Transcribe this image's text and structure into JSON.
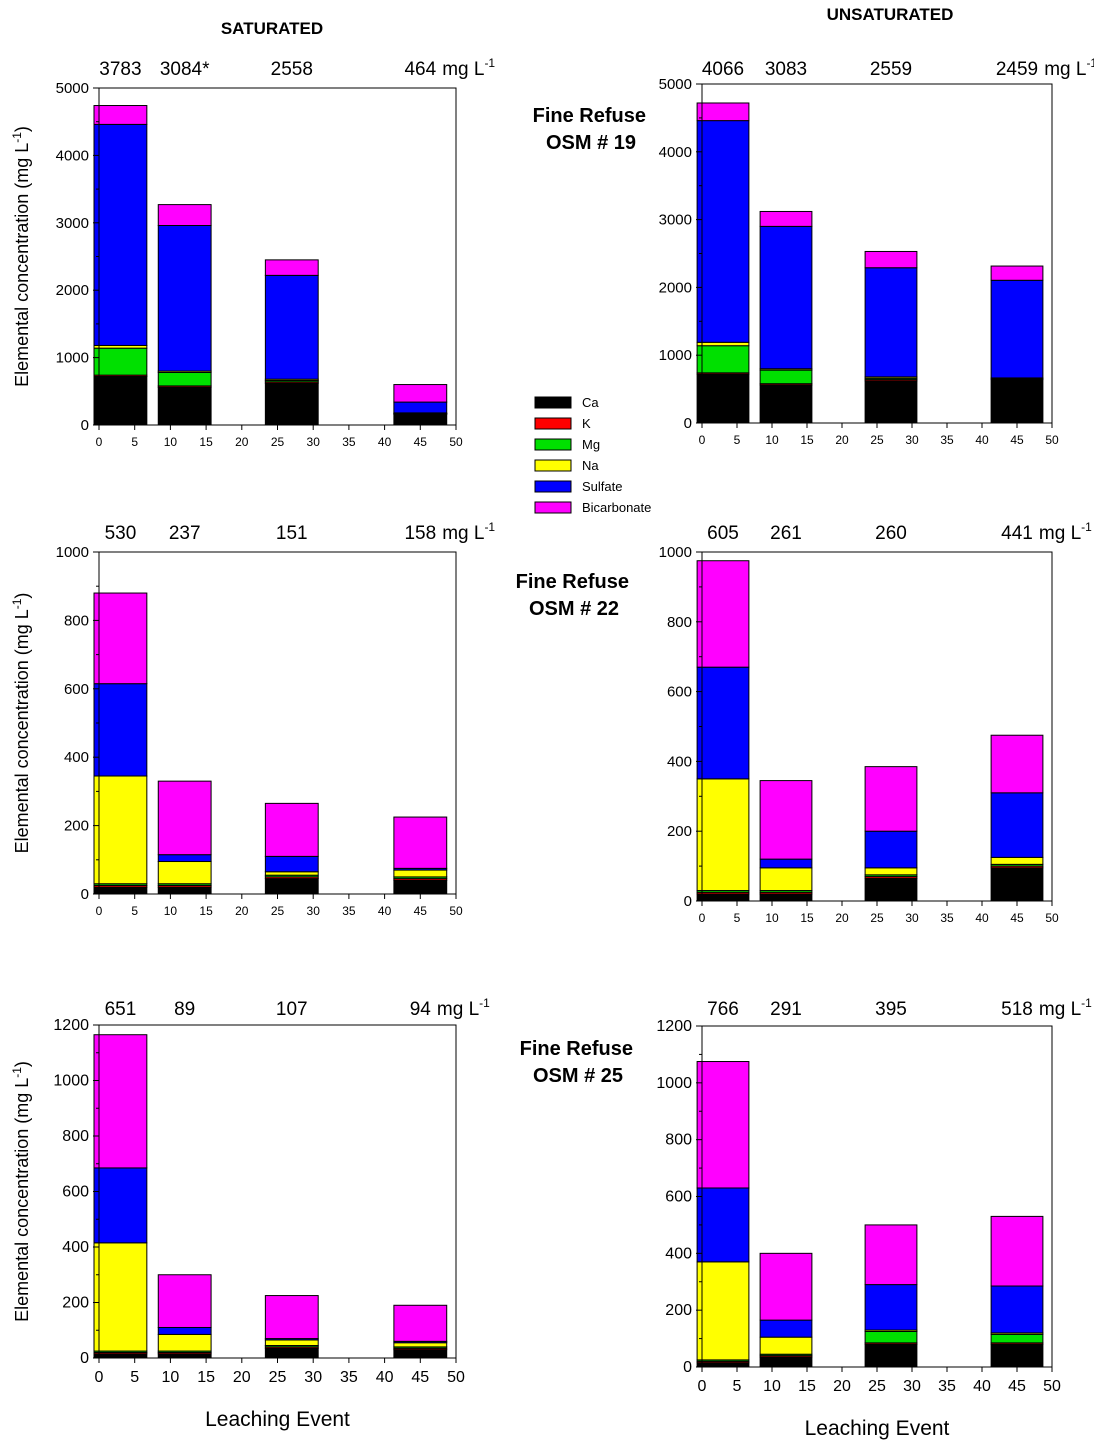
{
  "headings": {
    "saturated": "SATURATED",
    "unsaturated": "UNSATURATED"
  },
  "row_labels": [
    {
      "line1": "Fine Refuse",
      "line2": "OSM # 19"
    },
    {
      "line1": "Fine Refuse",
      "line2": "OSM # 22"
    },
    {
      "line1": "Fine Refuse",
      "line2": "OSM # 25"
    }
  ],
  "ylabel_main": "Elemental concentration (mg L",
  "ylabel_sup": "-1",
  "ylabel_tail": ")",
  "xlabel": "Leaching Event",
  "unit_main": "mg L",
  "unit_sup": "-1",
  "legend": [
    {
      "label": "Ca",
      "color": "#000000"
    },
    {
      "label": "K",
      "color": "#ff0000"
    },
    {
      "label": "Mg",
      "color": "#00e000"
    },
    {
      "label": "Na",
      "color": "#ffff00"
    },
    {
      "label": "Sulfate",
      "color": "#0000ff"
    },
    {
      "label": "Bicarbonate",
      "color": "#ff00ff"
    }
  ],
  "chart_data": [
    {
      "type": "bar",
      "stacked": true,
      "panel": "saturated",
      "row": "OSM # 19",
      "x": [
        3,
        12,
        27,
        45
      ],
      "xlim": [
        0,
        50
      ],
      "ylim": [
        0,
        5000
      ],
      "top_labels": [
        "3783",
        "3084*",
        "2558",
        "464"
      ],
      "xlabel": "",
      "ylabel": "Elemental concentration (mg L-1)",
      "series": [
        {
          "name": "Ca",
          "values": [
            720,
            560,
            620,
            160
          ]
        },
        {
          "name": "K",
          "values": [
            20,
            20,
            20,
            5
          ]
        },
        {
          "name": "Mg",
          "values": [
            400,
            200,
            20,
            5
          ]
        },
        {
          "name": "Na",
          "values": [
            40,
            20,
            20,
            10
          ]
        },
        {
          "name": "Sulfate",
          "values": [
            3280,
            2160,
            1540,
            160
          ]
        },
        {
          "name": "Bicarbonate",
          "values": [
            280,
            310,
            230,
            260
          ]
        }
      ]
    },
    {
      "type": "bar",
      "stacked": true,
      "panel": "unsaturated",
      "row": "OSM # 19",
      "x": [
        3,
        12,
        27,
        45
      ],
      "xlim": [
        0,
        50
      ],
      "ylim": [
        0,
        5000
      ],
      "top_labels": [
        "4066",
        "3083",
        "2559",
        "2459"
      ],
      "xlabel": "",
      "ylabel": "",
      "series": [
        {
          "name": "Ca",
          "values": [
            720,
            560,
            620,
            640
          ]
        },
        {
          "name": "K",
          "values": [
            20,
            20,
            20,
            10
          ]
        },
        {
          "name": "Mg",
          "values": [
            400,
            200,
            20,
            5
          ]
        },
        {
          "name": "Na",
          "values": [
            50,
            20,
            20,
            10
          ]
        },
        {
          "name": "Sulfate",
          "values": [
            3270,
            2100,
            1610,
            1440
          ]
        },
        {
          "name": "Bicarbonate",
          "values": [
            260,
            220,
            240,
            210
          ]
        }
      ]
    },
    {
      "type": "bar",
      "stacked": true,
      "panel": "saturated",
      "row": "OSM # 22",
      "x": [
        3,
        12,
        27,
        45
      ],
      "xlim": [
        0,
        50
      ],
      "ylim": [
        0,
        1000
      ],
      "top_labels": [
        "530",
        "237",
        "151",
        "158"
      ],
      "xlabel": "",
      "ylabel": "Elemental concentration (mg L-1)",
      "series": [
        {
          "name": "Ca",
          "values": [
            20,
            20,
            45,
            40
          ]
        },
        {
          "name": "K",
          "values": [
            5,
            5,
            5,
            5
          ]
        },
        {
          "name": "Mg",
          "values": [
            5,
            5,
            5,
            5
          ]
        },
        {
          "name": "Na",
          "values": [
            315,
            65,
            10,
            20
          ]
        },
        {
          "name": "Sulfate",
          "values": [
            270,
            20,
            45,
            5
          ]
        },
        {
          "name": "Bicarbonate",
          "values": [
            265,
            215,
            155,
            150
          ]
        }
      ]
    },
    {
      "type": "bar",
      "stacked": true,
      "panel": "unsaturated",
      "row": "OSM # 22",
      "x": [
        3,
        12,
        27,
        45
      ],
      "xlim": [
        0,
        50
      ],
      "ylim": [
        0,
        1000
      ],
      "top_labels": [
        "605",
        "261",
        "260",
        "441"
      ],
      "xlabel": "",
      "ylabel": "",
      "series": [
        {
          "name": "Ca",
          "values": [
            20,
            20,
            65,
            95
          ]
        },
        {
          "name": "K",
          "values": [
            5,
            5,
            5,
            5
          ]
        },
        {
          "name": "Mg",
          "values": [
            5,
            5,
            5,
            5
          ]
        },
        {
          "name": "Na",
          "values": [
            320,
            65,
            20,
            20
          ]
        },
        {
          "name": "Sulfate",
          "values": [
            320,
            25,
            105,
            185
          ]
        },
        {
          "name": "Bicarbonate",
          "values": [
            305,
            225,
            185,
            165
          ]
        }
      ]
    },
    {
      "type": "bar",
      "stacked": true,
      "panel": "saturated",
      "row": "OSM # 25",
      "x": [
        3,
        12,
        27,
        45
      ],
      "xlim": [
        0,
        50
      ],
      "ylim": [
        0,
        1200
      ],
      "top_labels": [
        "651",
        "89",
        "107",
        "94"
      ],
      "xlabel": "Leaching Event",
      "ylabel": "Elemental concentration (mg L-1)",
      "series": [
        {
          "name": "Ca",
          "values": [
            15,
            15,
            35,
            30
          ]
        },
        {
          "name": "K",
          "values": [
            5,
            5,
            5,
            5
          ]
        },
        {
          "name": "Mg",
          "values": [
            5,
            5,
            5,
            5
          ]
        },
        {
          "name": "Na",
          "values": [
            390,
            60,
            20,
            15
          ]
        },
        {
          "name": "Sulfate",
          "values": [
            270,
            25,
            5,
            5
          ]
        },
        {
          "name": "Bicarbonate",
          "values": [
            480,
            190,
            155,
            130
          ]
        }
      ]
    },
    {
      "type": "bar",
      "stacked": true,
      "panel": "unsaturated",
      "row": "OSM # 25",
      "x": [
        3,
        12,
        27,
        45
      ],
      "xlim": [
        0,
        50
      ],
      "ylim": [
        0,
        1200
      ],
      "top_labels": [
        "766",
        "291",
        "395",
        "518"
      ],
      "xlabel": "Leaching Event",
      "ylabel": "",
      "series": [
        {
          "name": "Ca",
          "values": [
            15,
            35,
            80,
            80
          ]
        },
        {
          "name": "K",
          "values": [
            5,
            5,
            5,
            5
          ]
        },
        {
          "name": "Mg",
          "values": [
            5,
            5,
            40,
            30
          ]
        },
        {
          "name": "Na",
          "values": [
            345,
            60,
            5,
            5
          ]
        },
        {
          "name": "Sulfate",
          "values": [
            260,
            60,
            160,
            165
          ]
        },
        {
          "name": "Bicarbonate",
          "values": [
            445,
            235,
            210,
            245
          ]
        }
      ]
    }
  ]
}
